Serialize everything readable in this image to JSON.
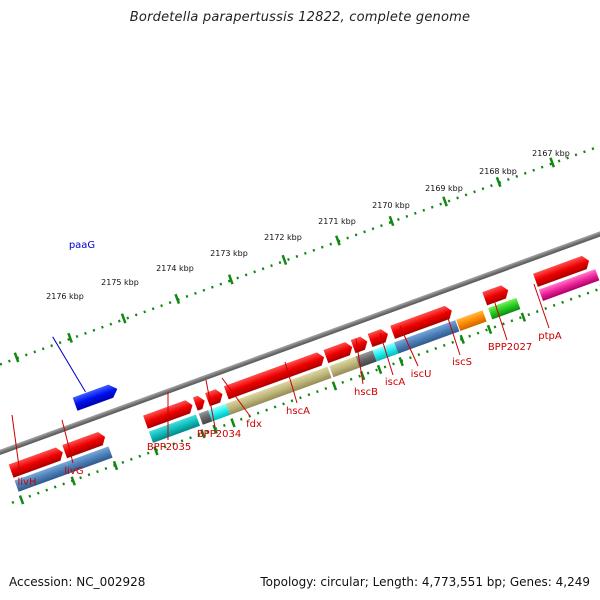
{
  "title": "Bordetella parapertussis 12822, complete genome",
  "footer": {
    "accession": "Accession: NC_002928",
    "summary": "Topology: circular; Length: 4,773,551 bp; Genes: 4,249"
  },
  "colors": {
    "kbp_ticks": "#118811",
    "gene_ticks": "#118811",
    "backbone": "#888888",
    "label_red": "#cc0000",
    "label_blue": "#0000cc"
  },
  "kbp_ruler": [
    "2167 kbp",
    "2168 kbp",
    "2169 kbp",
    "2170 kbp",
    "2171 kbp",
    "2172 kbp",
    "2173 kbp",
    "2174 kbp",
    "2175 kbp",
    "2176 kbp"
  ],
  "features": [
    {
      "label": "paaG",
      "strand": "reverse",
      "color": "#0000dd"
    },
    {
      "label": "livH",
      "strand": "forward",
      "color": "#dd0000"
    },
    {
      "label": "livG",
      "strand": "forward",
      "color": "#dd0000"
    },
    {
      "label": "BPP2035",
      "strand": "forward",
      "color": "#dd0000"
    },
    {
      "label": "BPP2034",
      "strand": "forward",
      "color": "#dd0000"
    },
    {
      "label": "fdx",
      "strand": "forward",
      "color": "#dd0000"
    },
    {
      "label": "hscA",
      "strand": "forward",
      "color": "#dd0000"
    },
    {
      "label": "hscB",
      "strand": "forward",
      "color": "#dd0000"
    },
    {
      "label": "iscA",
      "strand": "forward",
      "color": "#dd0000"
    },
    {
      "label": "iscU",
      "strand": "forward",
      "color": "#dd0000"
    },
    {
      "label": "iscS",
      "strand": "forward",
      "color": "#dd0000"
    },
    {
      "label": "BPP2027",
      "strand": "forward",
      "color": "#dd0000"
    },
    {
      "label": "ptpA",
      "strand": "forward",
      "color": "#dd0000"
    }
  ]
}
